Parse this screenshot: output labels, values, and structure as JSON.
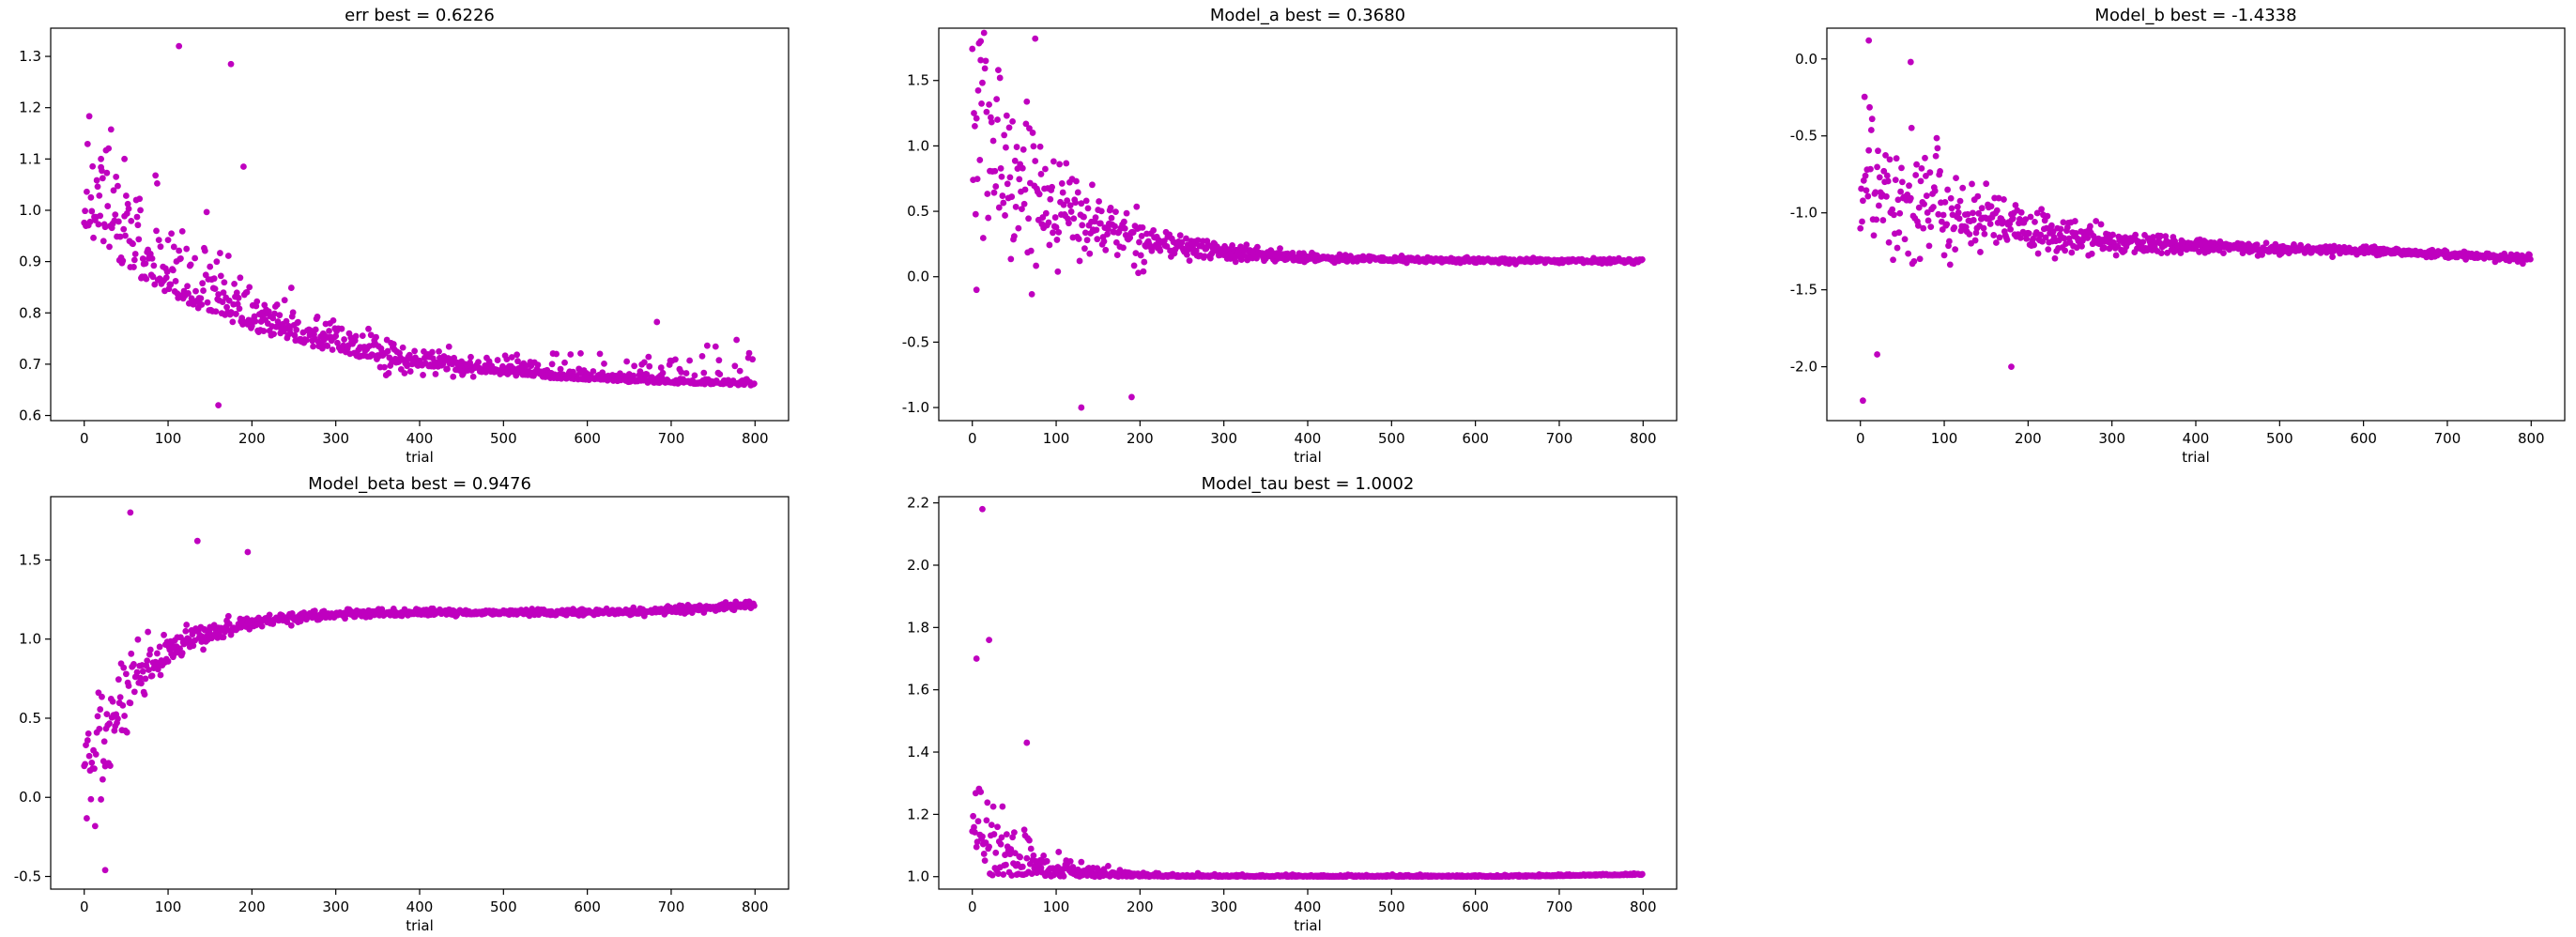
{
  "chart_data": [
    {
      "type": "scatter",
      "title": "err  best = 0.6226",
      "xlabel": "trial",
      "ylabel": "",
      "xlim": [
        -40,
        840
      ],
      "ylim": [
        0.59,
        1.355
      ],
      "xticks": [
        "0",
        "100",
        "200",
        "300",
        "400",
        "500",
        "600",
        "700",
        "800"
      ],
      "yticks": [
        "0.6",
        "0.7",
        "0.8",
        "0.9",
        "1.0",
        "1.1",
        "1.2",
        "1.3"
      ],
      "color": "#bf00bf",
      "n_points": 800,
      "trend": {
        "start": 0.95,
        "end": 0.652,
        "tau": 210,
        "spread_start": 0.13,
        "spread_end": 0.004,
        "upper_outliers": 0.04
      },
      "highlights": [
        {
          "x": 113,
          "y": 1.32
        },
        {
          "x": 175,
          "y": 1.285
        },
        {
          "x": 190,
          "y": 1.085
        },
        {
          "x": 20,
          "y": 1.1
        },
        {
          "x": 48,
          "y": 1.1
        },
        {
          "x": 160,
          "y": 0.62
        }
      ]
    },
    {
      "type": "scatter",
      "title": "Model_a  best = 0.3680",
      "xlabel": "trial",
      "ylabel": "",
      "xlim": [
        -40,
        840
      ],
      "ylim": [
        -1.1,
        1.9
      ],
      "xticks": [
        "0",
        "100",
        "200",
        "300",
        "400",
        "500",
        "600",
        "700",
        "800"
      ],
      "yticks": [
        "-1.0",
        "-0.5",
        "0.0",
        "0.5",
        "1.0",
        "1.5"
      ],
      "color": "#bf00bf",
      "n_points": 800,
      "trend": {
        "start": 1.2,
        "end": 0.12,
        "tau": 110,
        "spread_start": 0.55,
        "spread_end": 0.008,
        "upper_outliers": 0
      },
      "highlights": [
        {
          "x": 10,
          "y": 1.8
        },
        {
          "x": 75,
          "y": 1.82
        },
        {
          "x": 130,
          "y": -1.0
        },
        {
          "x": 190,
          "y": -0.92
        },
        {
          "x": 5,
          "y": -0.1
        }
      ]
    },
    {
      "type": "scatter",
      "title": "Model_b  best = -1.4338",
      "xlabel": "trial",
      "ylabel": "",
      "xlim": [
        -40,
        840
      ],
      "ylim": [
        -2.35,
        0.2
      ],
      "xticks": [
        "0",
        "100",
        "200",
        "300",
        "400",
        "500",
        "600",
        "700",
        "800"
      ],
      "yticks": [
        "-2.0",
        "-1.5",
        "-1.0",
        "-0.5",
        "0.0"
      ],
      "color": "#bf00bf",
      "n_points": 800,
      "trend": {
        "start": -0.7,
        "end": -1.25,
        "tau": 140,
        "spread_start": 0.35,
        "spread_end": 0.01,
        "upper_outliers": 0
      },
      "highlights": [
        {
          "x": 3,
          "y": -2.22
        },
        {
          "x": 10,
          "y": 0.12
        },
        {
          "x": 20,
          "y": -1.92
        },
        {
          "x": 60,
          "y": -0.02
        },
        {
          "x": 180,
          "y": -2.0
        }
      ]
    },
    {
      "type": "scatter",
      "title": "Model_beta  best = 0.9476",
      "xlabel": "trial",
      "ylabel": "",
      "xlim": [
        -40,
        840
      ],
      "ylim": [
        -0.58,
        1.9
      ],
      "xticks": [
        "0",
        "100",
        "200",
        "300",
        "400",
        "500",
        "600",
        "700",
        "800"
      ],
      "yticks": [
        "-0.5",
        "0.0",
        "0.5",
        "1.0",
        "1.5"
      ],
      "color": "#bf00bf",
      "n_points": 800,
      "trend": {
        "start": 0.05,
        "end": 1.17,
        "tau": 70,
        "spread_start": 0.28,
        "spread_end": 0.01,
        "upper_outliers": 0
      },
      "highlights": [
        {
          "x": 55,
          "y": 1.8
        },
        {
          "x": 25,
          "y": -0.46
        },
        {
          "x": 135,
          "y": 1.62
        },
        {
          "x": 195,
          "y": 1.55
        }
      ]
    },
    {
      "type": "scatter",
      "title": "Model_tau  best = 1.0002",
      "xlabel": "trial",
      "ylabel": "",
      "xlim": [
        -40,
        840
      ],
      "ylim": [
        0.96,
        2.22
      ],
      "xticks": [
        "0",
        "100",
        "200",
        "300",
        "400",
        "500",
        "600",
        "700",
        "800"
      ],
      "yticks": [
        "1.0",
        "1.2",
        "1.4",
        "1.6",
        "1.8",
        "2.0",
        "2.2"
      ],
      "color": "#bf00bf",
      "n_points": 800,
      "trend": {
        "start": 1.005,
        "end": 1.003,
        "tau": 60,
        "spread_start": 0.35,
        "spread_end": 0.004,
        "upper_outliers": 0
      },
      "highlights": [
        {
          "x": 12,
          "y": 2.18
        },
        {
          "x": 20,
          "y": 1.76
        },
        {
          "x": 5,
          "y": 1.7
        },
        {
          "x": 65,
          "y": 1.43
        }
      ]
    }
  ]
}
